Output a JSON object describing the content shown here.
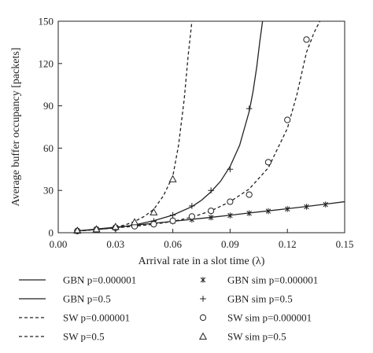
{
  "chart_data": {
    "type": "line",
    "title": "",
    "xlabel": "Arrival rate in a slot time (λ)",
    "ylabel": "Average buffer occupancy [packets]",
    "xlim": [
      0.0,
      0.15
    ],
    "ylim": [
      0,
      150
    ],
    "xticks": [
      0.0,
      0.03,
      0.06,
      0.09,
      0.12,
      0.15
    ],
    "xtick_labels": [
      "0.00",
      "0.03",
      "0.06",
      "0.09",
      "0.12",
      "0.15"
    ],
    "yticks": [
      0,
      30,
      60,
      90,
      120,
      150
    ],
    "ytick_labels": [
      "0",
      "30",
      "60",
      "90",
      "120",
      "150"
    ],
    "grid": false,
    "legend_position": "bottom",
    "series": [
      {
        "name": "GBN p=0.000001",
        "kind": "analytic",
        "style": "solid",
        "x": [
          0.01,
          0.02,
          0.03,
          0.04,
          0.05,
          0.06,
          0.07,
          0.08,
          0.09,
          0.1,
          0.11,
          0.12,
          0.13,
          0.14,
          0.15
        ],
        "y": [
          1.3,
          2.6,
          3.9,
          5.3,
          6.7,
          8.1,
          9.5,
          10.9,
          12.4,
          14.0,
          15.5,
          17.0,
          18.6,
          20.3,
          22.0
        ]
      },
      {
        "name": "GBN p=0.5",
        "kind": "analytic",
        "style": "solid",
        "x": [
          0.01,
          0.02,
          0.03,
          0.04,
          0.05,
          0.06,
          0.07,
          0.075,
          0.08,
          0.085,
          0.09,
          0.095,
          0.1,
          0.102,
          0.104,
          0.1055,
          0.107
        ],
        "y": [
          1.3,
          2.3,
          3.5,
          5.5,
          8.5,
          12.5,
          18.5,
          23.0,
          29.0,
          36.5,
          47.0,
          62.0,
          86.0,
          100.0,
          118.0,
          135.0,
          150.0
        ]
      },
      {
        "name": "SW p=0.000001",
        "kind": "analytic",
        "style": "dashed",
        "x": [
          0.01,
          0.02,
          0.03,
          0.04,
          0.05,
          0.06,
          0.07,
          0.08,
          0.09,
          0.1,
          0.11,
          0.12,
          0.125,
          0.13,
          0.134,
          0.137
        ],
        "y": [
          1.2,
          2.2,
          3.4,
          4.6,
          6.0,
          8.0,
          11.0,
          15.5,
          22.0,
          31.0,
          46.0,
          74.0,
          98.0,
          128.0,
          142.0,
          150.0
        ]
      },
      {
        "name": "SW p=0.5",
        "kind": "analytic",
        "style": "dashed",
        "x": [
          0.01,
          0.02,
          0.03,
          0.035,
          0.04,
          0.045,
          0.05,
          0.055,
          0.06,
          0.063,
          0.066,
          0.068,
          0.07
        ],
        "y": [
          1.2,
          2.3,
          4.0,
          5.5,
          8.0,
          11.5,
          16.5,
          26.0,
          40.0,
          62.0,
          95.0,
          125.0,
          150.0
        ]
      },
      {
        "name": "GBN sim p=0.000001",
        "kind": "simulation",
        "marker": "star",
        "x": [
          0.01,
          0.02,
          0.03,
          0.04,
          0.05,
          0.06,
          0.07,
          0.08,
          0.09,
          0.1,
          0.11,
          0.12,
          0.13,
          0.14
        ],
        "y": [
          1.3,
          2.5,
          3.8,
          5.2,
          6.6,
          8.0,
          9.3,
          10.8,
          12.2,
          13.8,
          15.3,
          16.8,
          18.4,
          20.0
        ]
      },
      {
        "name": "GBN sim p=0.5",
        "kind": "simulation",
        "marker": "plus",
        "x": [
          0.01,
          0.02,
          0.03,
          0.04,
          0.05,
          0.06,
          0.07,
          0.08,
          0.09,
          0.1
        ],
        "y": [
          1.4,
          2.5,
          3.6,
          5.7,
          8.3,
          12.5,
          19.0,
          30.0,
          45.0,
          88.0
        ]
      },
      {
        "name": "SW sim p=0.000001",
        "kind": "simulation",
        "marker": "circle",
        "x": [
          0.01,
          0.02,
          0.03,
          0.04,
          0.05,
          0.06,
          0.07,
          0.08,
          0.09,
          0.1,
          0.11,
          0.12,
          0.13
        ],
        "y": [
          1.2,
          2.2,
          3.4,
          4.6,
          6.0,
          8.5,
          11.5,
          15.5,
          22.0,
          27.0,
          50.0,
          80.0,
          137.0
        ]
      },
      {
        "name": "SW sim p=0.5",
        "kind": "simulation",
        "marker": "triangle",
        "x": [
          0.01,
          0.02,
          0.03,
          0.04,
          0.05,
          0.06
        ],
        "y": [
          1.5,
          2.5,
          4.2,
          7.5,
          14.5,
          38.0
        ]
      }
    ]
  },
  "legend": {
    "left": [
      {
        "label": "GBN p=0.000001",
        "line": "solid"
      },
      {
        "label": "GBN p=0.5",
        "line": "solid"
      },
      {
        "label": "SW p=0.000001",
        "line": "dashed"
      },
      {
        "label": "SW p=0.5",
        "line": "dashed"
      }
    ],
    "right": [
      {
        "label": "GBN sim p=0.000001",
        "marker": "star"
      },
      {
        "label": "GBN sim p=0.5",
        "marker": "plus"
      },
      {
        "label": "SW sim p=0.000001",
        "marker": "circle"
      },
      {
        "label": "SW sim p=0.5",
        "marker": "triangle"
      }
    ]
  }
}
